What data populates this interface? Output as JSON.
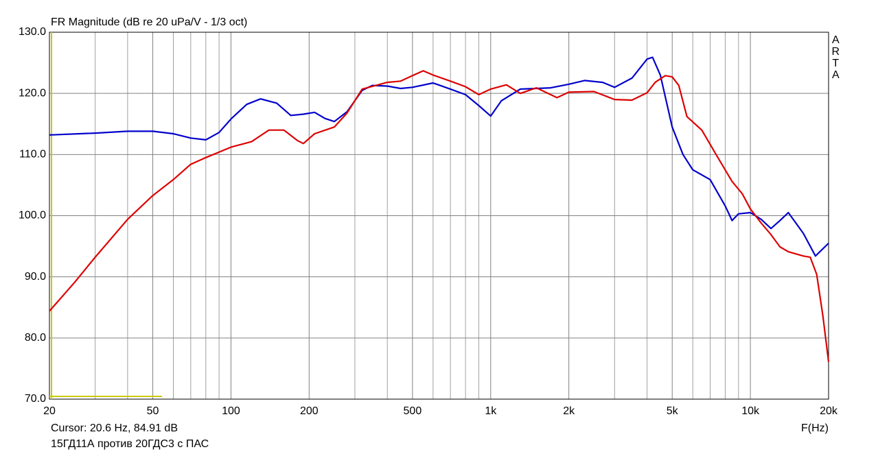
{
  "chart_data": {
    "type": "line",
    "title": "FR Magnitude (dB re 20 uPa/V - 1/3 oct)",
    "watermark": "ARTA",
    "cursor_text": "Cursor: 20.6 Hz, 84.91 dB",
    "x_label": "F(Hz)",
    "caption": "15ГД11А против 20ГДС3 с ПАС",
    "log_x": true,
    "grid": true,
    "xlim": [
      20,
      20000
    ],
    "ylim": [
      70,
      130
    ],
    "xticks": [
      20,
      50,
      100,
      200,
      500,
      {
        "value": 1000,
        "label": "1k"
      },
      {
        "value": 2000,
        "label": "2k"
      },
      {
        "value": 5000,
        "label": "5k"
      },
      {
        "value": 10000,
        "label": "10k"
      },
      {
        "value": 20000,
        "label": "20k"
      }
    ],
    "xgrid": [
      30,
      40,
      60,
      70,
      80,
      90,
      300,
      400,
      600,
      700,
      800,
      900,
      3000,
      4000,
      6000,
      7000,
      8000,
      9000
    ],
    "yticks": [
      {
        "value": 70,
        "label": "70.0"
      },
      {
        "value": 80,
        "label": "80.0"
      },
      {
        "value": 90,
        "label": "90.0"
      },
      {
        "value": 100,
        "label": "100.0"
      },
      {
        "value": 110,
        "label": "110.0"
      },
      {
        "value": 120,
        "label": "120.0"
      },
      {
        "value": 130,
        "label": "130.0"
      }
    ],
    "series": [
      {
        "color": "#0000cc",
        "x": [
          20,
          30,
          40,
          50,
          60,
          70,
          80,
          90,
          100,
          115,
          130,
          150,
          170,
          190,
          210,
          230,
          250,
          280,
          320,
          350,
          400,
          450,
          500,
          600,
          700,
          800,
          900,
          1000,
          1100,
          1300,
          1500,
          1700,
          2000,
          2300,
          2700,
          3000,
          3500,
          4000,
          4200,
          4500,
          5000,
          5500,
          6000,
          7000,
          8000,
          8500,
          9000,
          10000,
          11000,
          12000,
          13000,
          14000,
          16000,
          17800,
          20000
        ],
        "values": [
          113.2,
          113.5,
          113.8,
          113.8,
          113.4,
          112.7,
          112.4,
          113.6,
          115.8,
          118.2,
          119.1,
          118.4,
          116.4,
          116.6,
          116.9,
          115.9,
          115.4,
          117,
          120.5,
          121.3,
          121.2,
          120.8,
          121,
          121.7,
          120.7,
          119.8,
          118,
          116.3,
          118.8,
          120.7,
          120.8,
          120.9,
          121.5,
          122.1,
          121.8,
          121,
          122.5,
          125.6,
          125.9,
          123,
          114.5,
          110,
          107.5,
          105.9,
          101.6,
          99.2,
          100.3,
          100.5,
          99.4,
          97.9,
          99.2,
          100.5,
          97.1,
          93.4,
          95.5
        ]
      },
      {
        "color": "#dd0000",
        "x": [
          20,
          25,
          30,
          40,
          50,
          60,
          70,
          80,
          100,
          120,
          140,
          160,
          180,
          190,
          210,
          250,
          280,
          320,
          400,
          450,
          500,
          550,
          600,
          700,
          800,
          900,
          1000,
          1150,
          1300,
          1500,
          1800,
          2000,
          2500,
          3000,
          3500,
          4000,
          4300,
          4700,
          5000,
          5300,
          5700,
          6500,
          7500,
          8500,
          9300,
          10000,
          11000,
          12000,
          13000,
          14000,
          16000,
          17000,
          18000,
          19000,
          20000
        ],
        "values": [
          84.4,
          89.1,
          93.2,
          99.4,
          103.3,
          105.9,
          108.4,
          109.5,
          111.2,
          112.1,
          114,
          114,
          112.3,
          111.8,
          113.4,
          114.5,
          116.8,
          120.7,
          121.8,
          122,
          122.9,
          123.7,
          123,
          122,
          121.1,
          119.8,
          120.7,
          121.4,
          120,
          120.9,
          119.3,
          120.2,
          120.3,
          119,
          118.9,
          120.1,
          121.8,
          122.9,
          122.7,
          121.3,
          116.2,
          114,
          109.5,
          105.6,
          103.6,
          101.1,
          98.8,
          96.9,
          94.9,
          94.1,
          93.4,
          93.2,
          90.4,
          83.7,
          76.1
        ]
      }
    ]
  }
}
